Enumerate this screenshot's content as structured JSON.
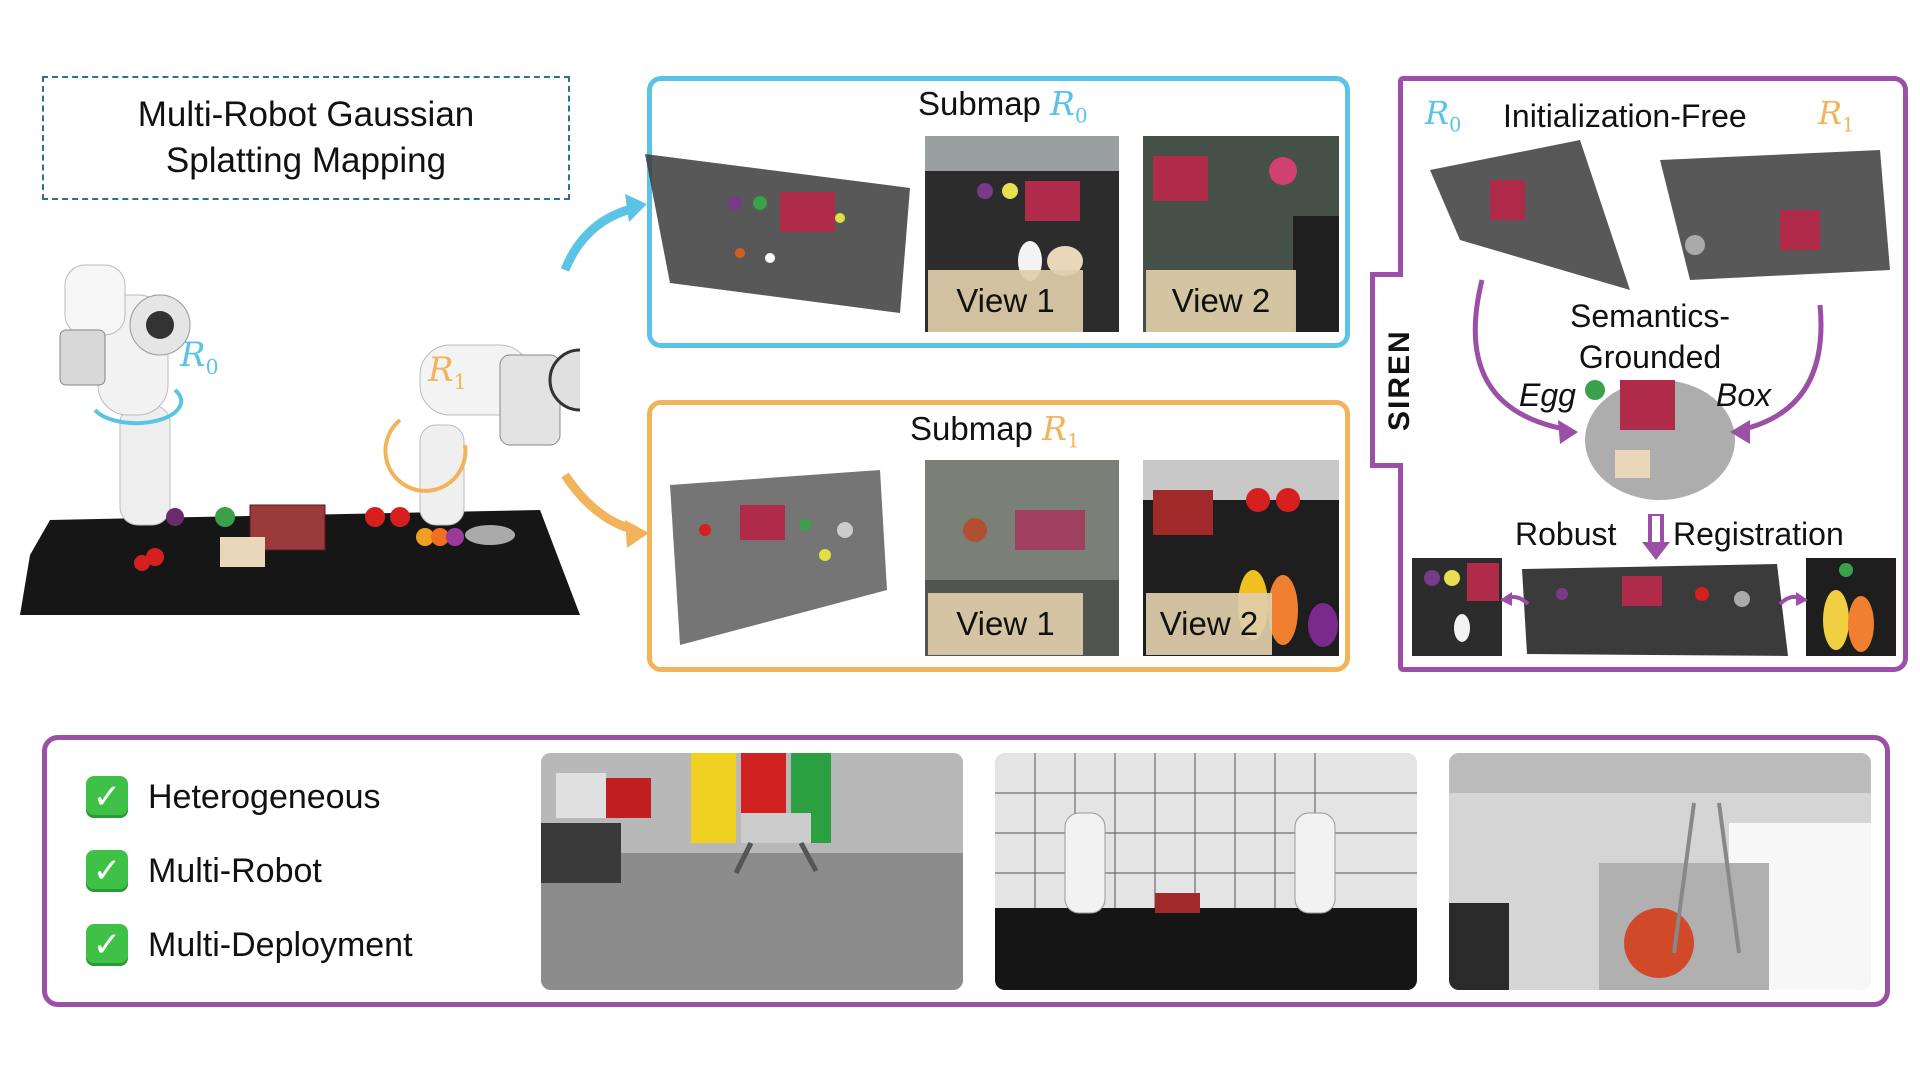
{
  "title": {
    "line1": "Multi-Robot Gaussian",
    "line2": "Splatting Mapping"
  },
  "robots": {
    "r0": {
      "symbol": "R",
      "subscript": "0"
    },
    "r1": {
      "symbol": "R",
      "subscript": "1"
    }
  },
  "submap_r0": {
    "label": "Submap",
    "views": [
      "View 1",
      "View 2"
    ]
  },
  "submap_r1": {
    "label": "Submap",
    "views": [
      "View 1",
      "View 2"
    ]
  },
  "siren": {
    "name": "SIREN",
    "init_free": "Initialization-Free",
    "semantics_line1": "Semantics-",
    "semantics_line2": "Grounded",
    "egg": "Egg",
    "box": "Box",
    "robust": "Robust",
    "registration": "Registration"
  },
  "features": [
    {
      "label": "Heterogeneous"
    },
    {
      "label": "Multi-Robot"
    },
    {
      "label": "Multi-Deployment"
    }
  ],
  "colors": {
    "r0_accent": "#5bc4e6",
    "r1_accent": "#f2b45a",
    "siren_border": "#9b4fa6",
    "title_border": "#2f6f8f",
    "check_green": "#3fc047"
  }
}
